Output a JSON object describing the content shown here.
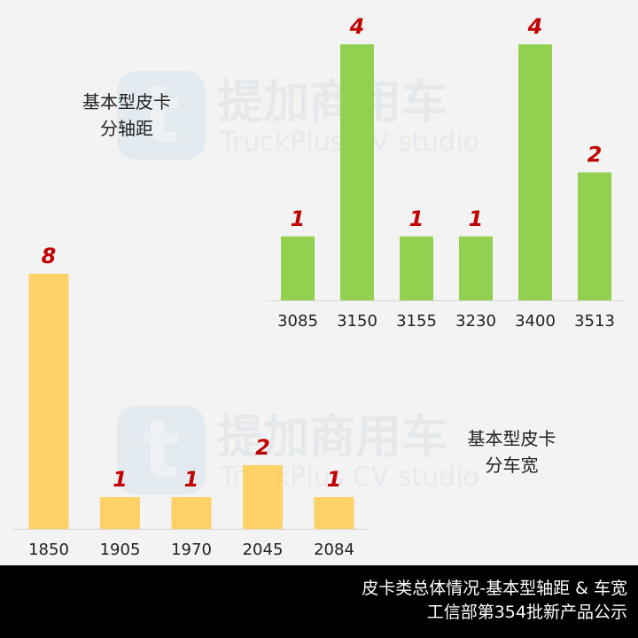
{
  "watermark": {
    "cn_text": "提加商用车",
    "en_text": "TruckPlus CV studio",
    "logo_letter": "t"
  },
  "chart_data": [
    {
      "type": "bar",
      "title": [
        "基本型皮卡",
        "分轴距"
      ],
      "categories": [
        "3085",
        "3150",
        "3155",
        "3230",
        "3400",
        "3513"
      ],
      "values": [
        1,
        4,
        1,
        1,
        4,
        2
      ],
      "color": "#92d050",
      "label_color": "#c00000",
      "ylim": [
        0,
        4
      ],
      "grid": false
    },
    {
      "type": "bar",
      "title": [
        "基本型皮卡",
        "分车宽"
      ],
      "categories": [
        "1850",
        "1905",
        "1970",
        "2045",
        "2084"
      ],
      "values": [
        8,
        1,
        1,
        2,
        1
      ],
      "color": "#ffd166",
      "label_color": "#c00000",
      "ylim": [
        0,
        8
      ],
      "grid": false
    }
  ],
  "footer": {
    "line1": "皮卡类总体情况-基本型轴距 & 车宽",
    "line2": "工信部第354批新产品公示"
  }
}
